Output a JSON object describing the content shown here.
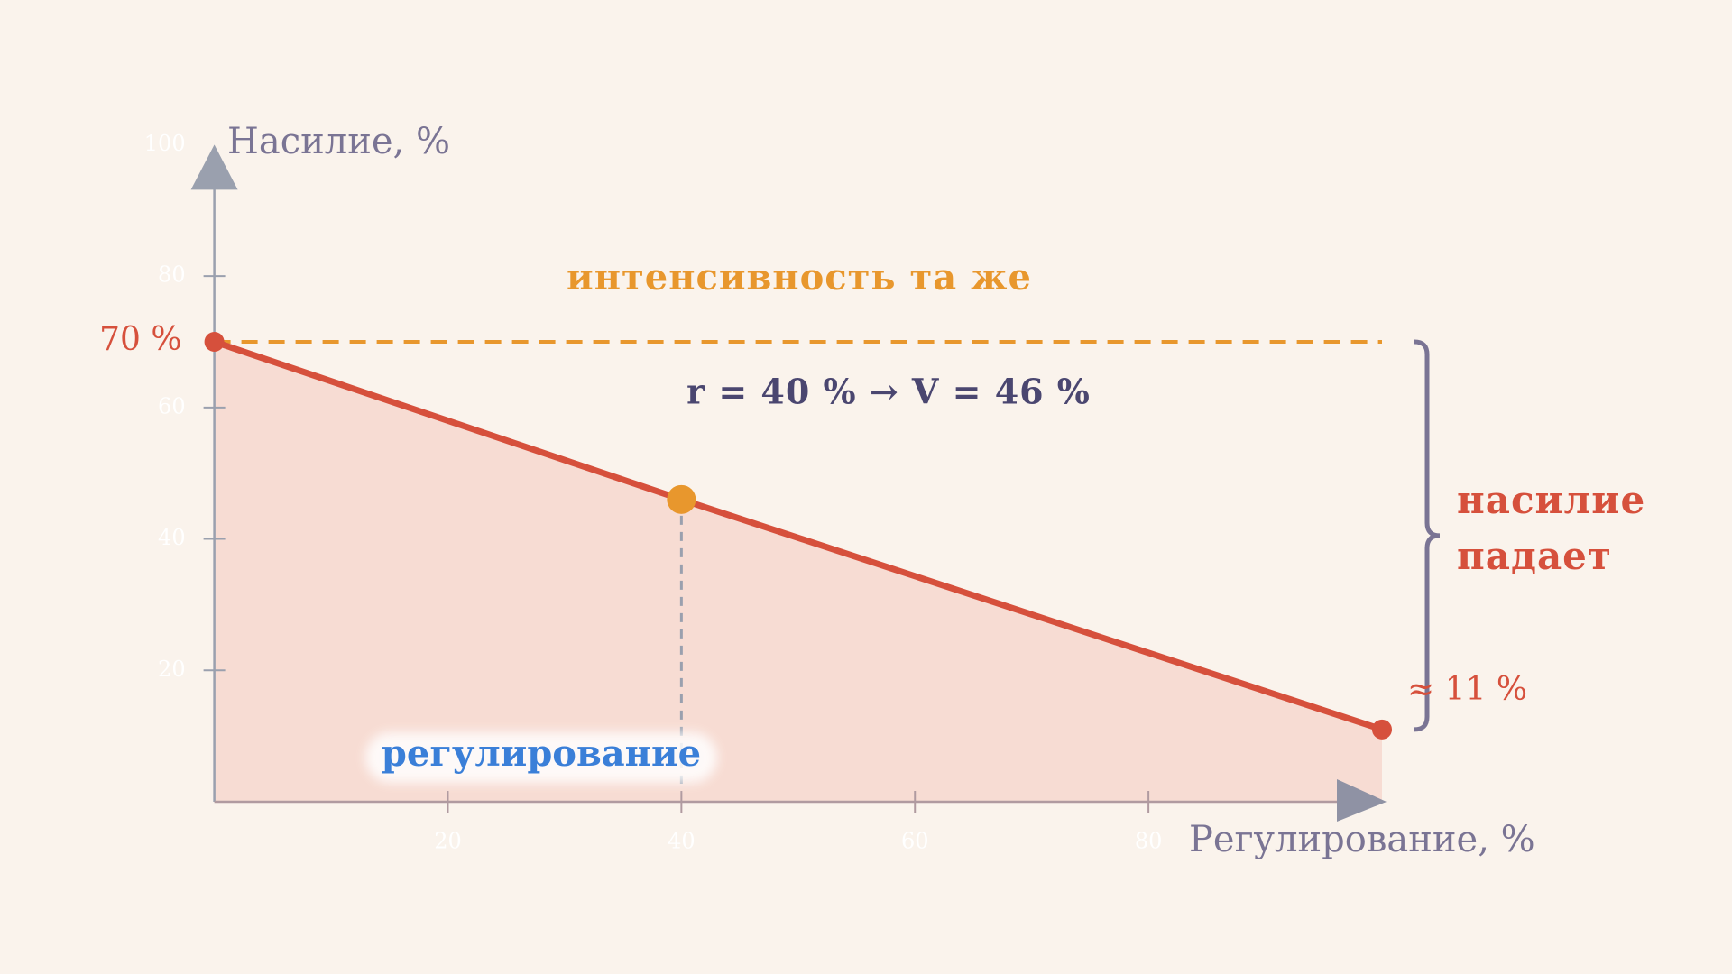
{
  "chart_data": {
    "type": "line",
    "x_label": "Регулирование, %",
    "y_label": "Насилие, %",
    "xlim": [
      0,
      100
    ],
    "ylim": [
      0,
      100
    ],
    "xticks": [
      20,
      40,
      60,
      80
    ],
    "yticks": [
      20,
      40,
      60,
      80,
      100
    ],
    "x": [
      0,
      40,
      100
    ],
    "series": [
      {
        "color": "#d6503c",
        "values": [
          70,
          46,
          11
        ],
        "value_labels": [
          "70 %",
          null,
          "≈ 11 %"
        ]
      }
    ],
    "highlight_color": "#e8972d",
    "annotations": {
      "constant": "интенсивность та же",
      "point": "r = 40 % → V = 46 %",
      "drop": [
        "насилие",
        "падает"
      ],
      "x_note": "регулирование"
    }
  }
}
